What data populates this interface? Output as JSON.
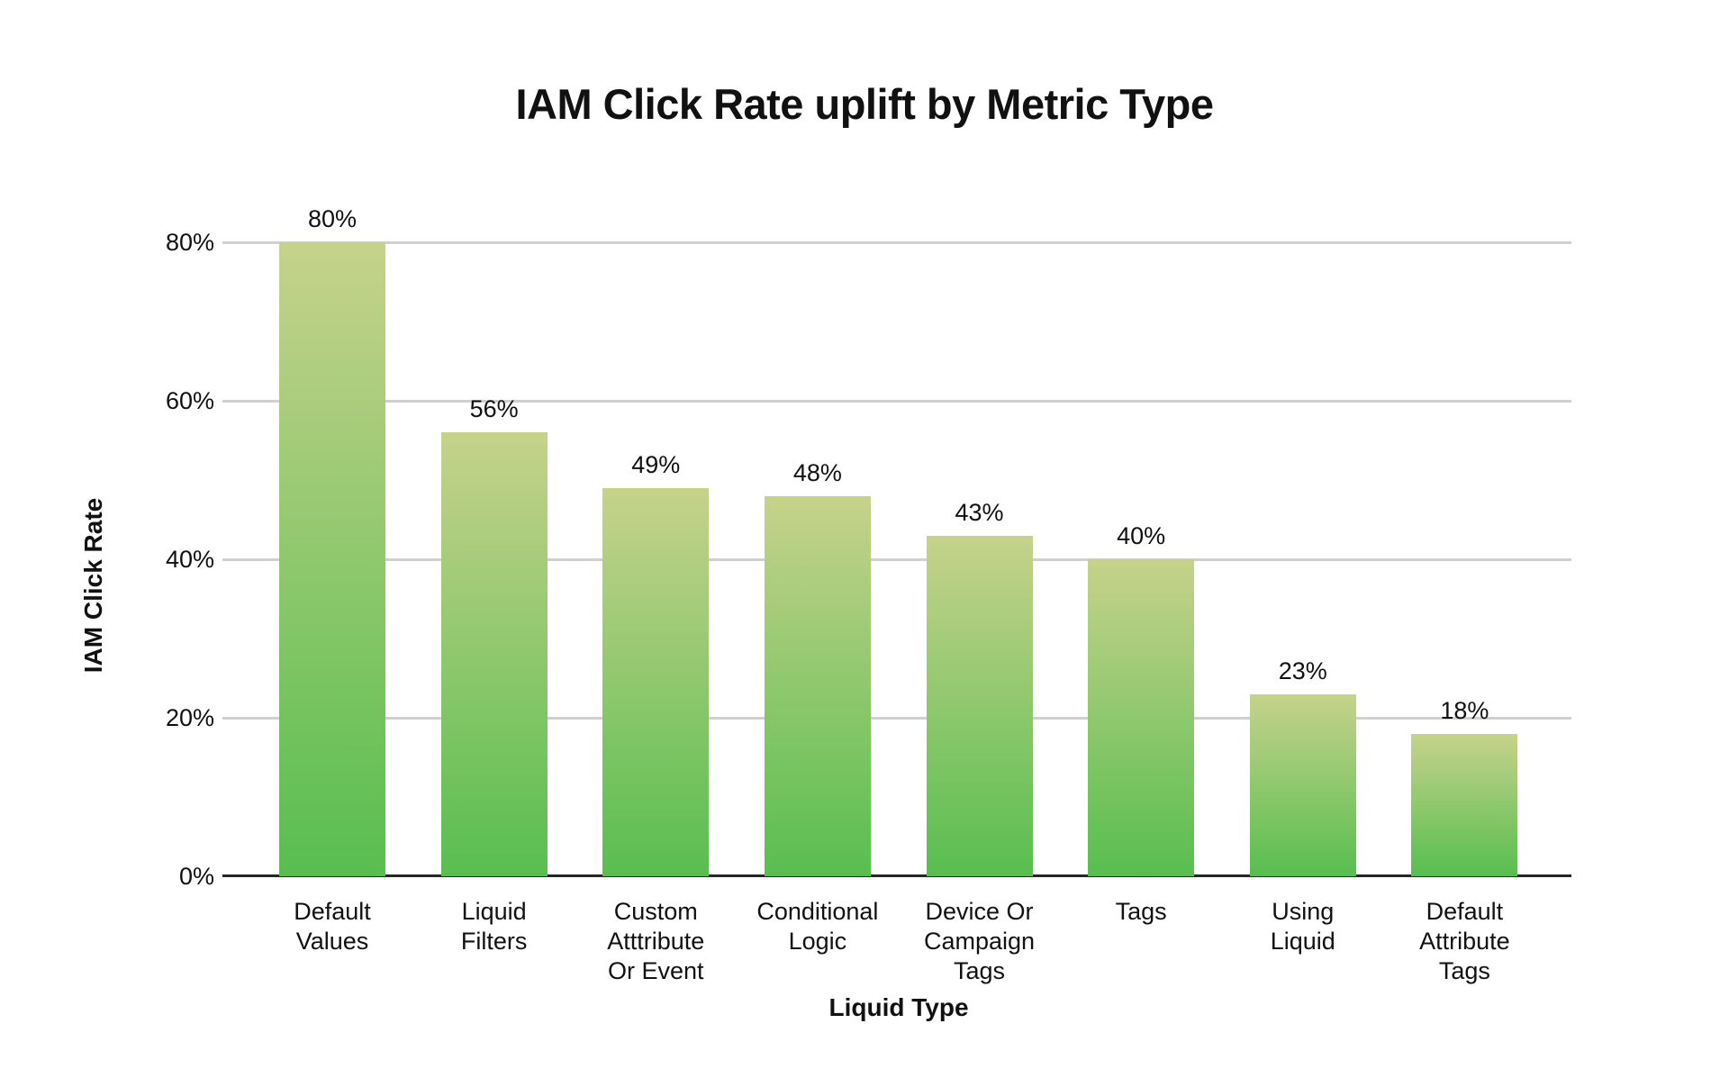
{
  "chart_data": {
    "type": "bar",
    "title": "IAM Click Rate uplift by Metric Type",
    "xlabel": "Liquid Type",
    "ylabel": "IAM Click Rate",
    "categories": [
      "Default Values",
      "Liquid Filters",
      "Custom Atttribute Or Event",
      "Conditional Logic",
      "Device Or Campaign Tags",
      "Tags",
      "Using Liquid",
      "Default Attribute Tags"
    ],
    "category_lines": [
      [
        "Default",
        "Values"
      ],
      [
        "Liquid",
        "Filters"
      ],
      [
        "Custom",
        "Atttribute",
        "Or Event"
      ],
      [
        "Conditional",
        "Logic"
      ],
      [
        "Device Or",
        "Campaign",
        "Tags"
      ],
      [
        "Tags"
      ],
      [
        "Using",
        "Liquid"
      ],
      [
        "Default",
        "Attribute",
        "Tags"
      ]
    ],
    "values": [
      80,
      56,
      49,
      48,
      43,
      40,
      23,
      18
    ],
    "value_labels": [
      "80%",
      "56%",
      "49%",
      "48%",
      "43%",
      "40%",
      "23%",
      "18%"
    ],
    "y_tick_values": [
      0,
      20,
      40,
      60,
      80
    ],
    "y_tick_labels": [
      "0%",
      "20%",
      "40%",
      "60%",
      "80%"
    ],
    "ylim": [
      0,
      80
    ],
    "grid": true,
    "legend": null,
    "colors": {
      "bar_gradient_top": "#c6d28b",
      "bar_gradient_bottom": "#58be50",
      "gridline": "#d0d0d0",
      "axis_line": "#262626",
      "text": "#111111"
    }
  }
}
